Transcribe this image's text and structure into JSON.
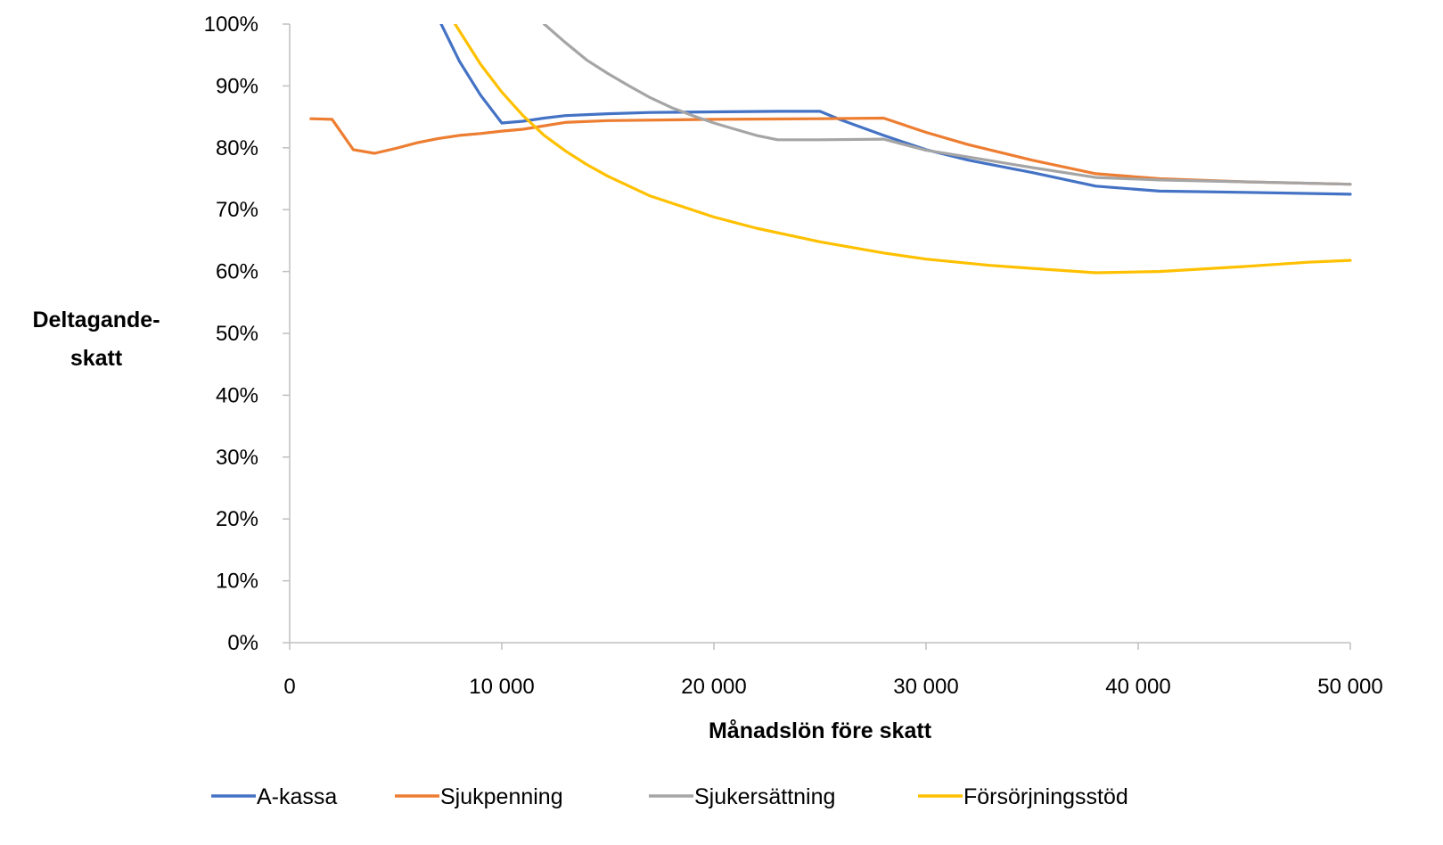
{
  "chart_data": {
    "type": "line",
    "title": "",
    "xlabel": "Månadslön före skatt",
    "ylabel_lines": [
      "Deltagande-",
      "skatt"
    ],
    "xlim": [
      0,
      50000
    ],
    "ylim": [
      0,
      100
    ],
    "x_ticks": [
      0,
      10000,
      20000,
      30000,
      40000,
      50000
    ],
    "x_tick_labels": [
      "0",
      "10 000",
      "20 000",
      "30 000",
      "40 000",
      "50 000"
    ],
    "y_ticks": [
      0,
      10,
      20,
      30,
      40,
      50,
      60,
      70,
      80,
      90,
      100
    ],
    "y_tick_labels": [
      "0%",
      "10%",
      "20%",
      "30%",
      "40%",
      "50%",
      "60%",
      "70%",
      "80%",
      "90%",
      "100%"
    ],
    "grid": false,
    "legend_position": "bottom",
    "series": [
      {
        "name": "A-kassa",
        "color": "#4472C4",
        "x": [
          7000,
          8000,
          9000,
          10000,
          11000,
          12000,
          13000,
          15000,
          17000,
          20000,
          23000,
          25000,
          26000,
          28000,
          30000,
          32000,
          35000,
          38000,
          41000,
          45000,
          50000
        ],
        "y": [
          101,
          94,
          88.5,
          84,
          84.3,
          84.8,
          85.2,
          85.5,
          85.7,
          85.8,
          85.9,
          85.9,
          84.5,
          82,
          79.7,
          78,
          76,
          73.8,
          73,
          72.8,
          72.5
        ]
      },
      {
        "name": "Sjukpenning",
        "color": "#ED7D31",
        "x": [
          1000,
          2000,
          3000,
          4000,
          5000,
          6000,
          7000,
          8000,
          9000,
          10000,
          11000,
          13000,
          15000,
          20000,
          25000,
          28000,
          30000,
          32000,
          35000,
          38000,
          41000,
          45000,
          50000
        ],
        "y": [
          84.7,
          84.6,
          79.7,
          79.1,
          79.9,
          80.8,
          81.5,
          82,
          82.3,
          82.7,
          83,
          84.1,
          84.4,
          84.6,
          84.7,
          84.8,
          82.5,
          80.5,
          78,
          75.8,
          75,
          74.5,
          74.1
        ]
      },
      {
        "name": "Sjukersättning",
        "color": "#A5A5A5",
        "x": [
          12000,
          13000,
          14000,
          15000,
          16000,
          17000,
          18000,
          19000,
          20000,
          21000,
          22000,
          23000,
          25000,
          28000,
          30000,
          32000,
          35000,
          38000,
          41000,
          45000,
          50000
        ],
        "y": [
          100,
          97,
          94.2,
          92,
          90,
          88.1,
          86.5,
          85.2,
          84,
          83,
          82,
          81.3,
          81.3,
          81.4,
          79.6,
          78.5,
          76.8,
          75.2,
          74.8,
          74.5,
          74.1
        ]
      },
      {
        "name": "Försörjningsstöd",
        "color": "#FFC000",
        "x": [
          7800,
          9000,
          10000,
          11000,
          12000,
          13000,
          14000,
          15000,
          17000,
          20000,
          22000,
          25000,
          28000,
          30000,
          33000,
          35000,
          38000,
          41000,
          45000,
          48000,
          50000
        ],
        "y": [
          100,
          93.5,
          89,
          85.2,
          82,
          79.5,
          77.3,
          75.4,
          72.2,
          68.8,
          67,
          64.8,
          63,
          62,
          61,
          60.5,
          59.8,
          60,
          60.8,
          61.5,
          61.8
        ]
      }
    ]
  }
}
